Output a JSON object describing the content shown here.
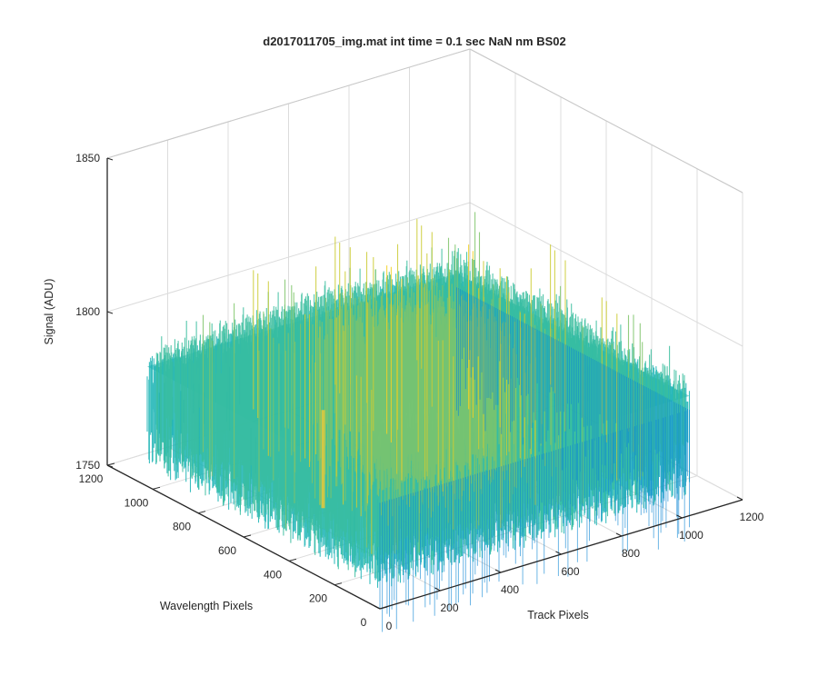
{
  "chart_data": {
    "type": "surface",
    "title": "d2017011705_img.mat int time = 0.1 sec  NaN nm BS02",
    "xlabel": "Track Pixels",
    "ylabel": "Wavelength Pixels",
    "zlabel": "Signal (ADU)",
    "xlim": [
      0,
      1200
    ],
    "ylim": [
      0,
      1200
    ],
    "zlim": [
      1750,
      1850
    ],
    "x_ticks": [
      "0",
      "200",
      "400",
      "600",
      "800",
      "1000",
      "1200"
    ],
    "y_ticks": [
      "0",
      "200",
      "400",
      "600",
      "800",
      "1000",
      "1200"
    ],
    "z_ticks": [
      "1750",
      "1800",
      "1850"
    ],
    "surface_extent": {
      "x": [
        0,
        1024
      ],
      "y": [
        0,
        1024
      ]
    },
    "surface_mean": 1789,
    "surface_noise_range": [
      1770,
      1815
    ],
    "surface_center_peak": 1830,
    "surface_artifact": {
      "x": 0,
      "y": 250,
      "value": 1795
    },
    "colormap": [
      "#0c6fd8",
      "#0a98d4",
      "#17b3b4",
      "#38bd9d",
      "#7fc46a",
      "#cbcb35",
      "#f2d024"
    ],
    "grid": true,
    "box": "back-planes"
  }
}
